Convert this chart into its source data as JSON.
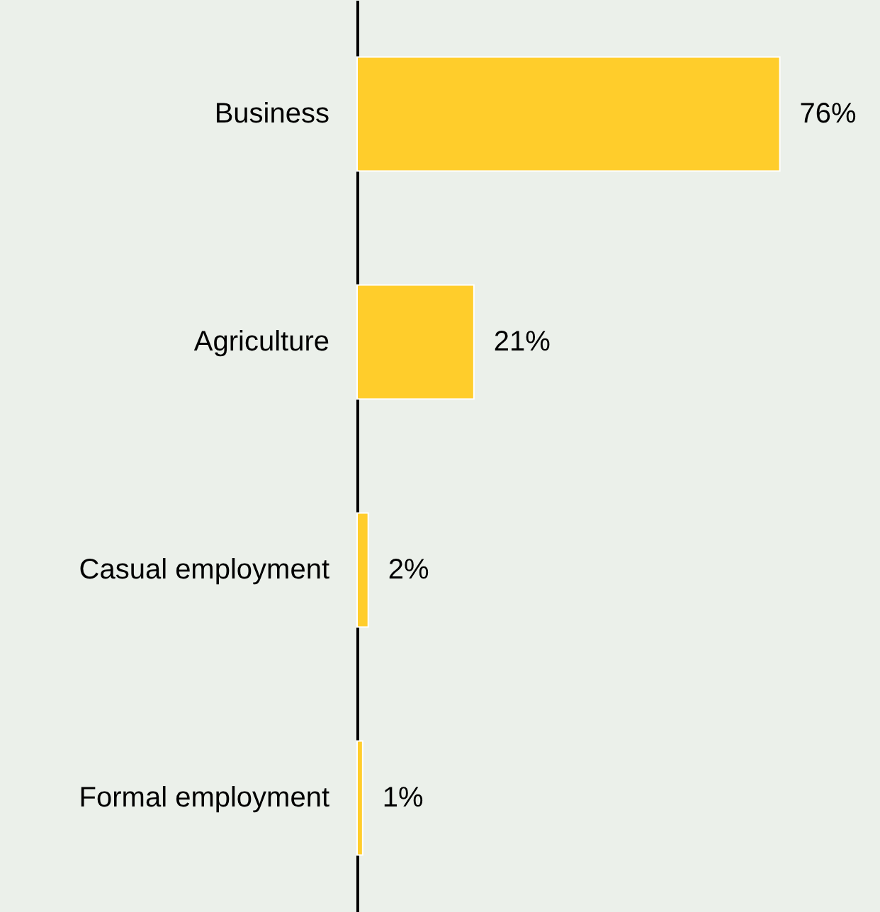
{
  "chart_data": {
    "type": "bar",
    "orientation": "horizontal",
    "categories": [
      "Business",
      "Agriculture",
      "Casual employment",
      "Formal employment"
    ],
    "values": [
      76,
      21,
      2,
      1
    ],
    "value_labels": [
      "76%",
      "21%",
      "2%",
      "1%"
    ],
    "color": "#ffcd2b"
  }
}
